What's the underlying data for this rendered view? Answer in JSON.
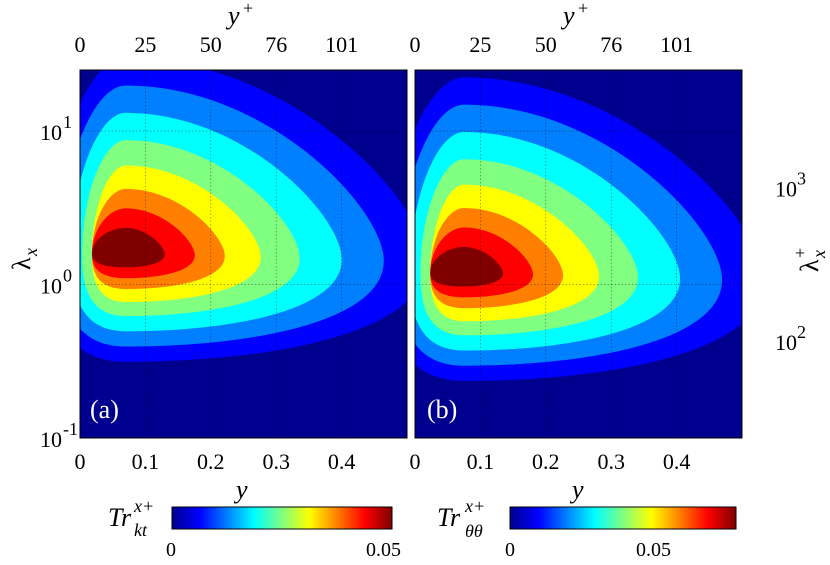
{
  "chart_data": [
    {
      "type": "heatmap",
      "panel_label": "(a)",
      "xlabel": "y",
      "top_xlabel": "y",
      "top_xlabel_sup": "+",
      "ylabel": "λ",
      "ylabel_sub": "x",
      "xlim": [
        0,
        0.5
      ],
      "ylim": [
        0.1,
        25
      ],
      "yscale": "log",
      "x_ticks": [
        "0",
        "0.1",
        "0.2",
        "0.3",
        "0.4"
      ],
      "x_tick_values": [
        0,
        0.1,
        0.2,
        0.3,
        0.4
      ],
      "top_x_ticks": [
        "0",
        "25",
        "50",
        "76",
        "101"
      ],
      "y_ticks": [
        {
          "base": "10",
          "exp": "-1",
          "value": 0.1
        },
        {
          "base": "10",
          "exp": "0",
          "value": 1
        },
        {
          "base": "10",
          "exp": "1",
          "value": 10
        }
      ],
      "grid": true,
      "peak": {
        "x": 0.07,
        "lambda_x": 1.6,
        "value": 0.05
      },
      "colorbar": {
        "label": "Tr",
        "label_sup": "x+",
        "label_sub": "kt",
        "min": 0,
        "max": 0.05,
        "ticks": [
          "0",
          "0.05"
        ],
        "tick_values": [
          0,
          0.05
        ]
      }
    },
    {
      "type": "heatmap",
      "panel_label": "(b)",
      "xlabel": "y",
      "top_xlabel": "y",
      "top_xlabel_sup": "+",
      "ylabel": "λ",
      "ylabel_sub": "x",
      "right_ylabel": "λ",
      "right_ylabel_sub": "x",
      "right_ylabel_sup": "+",
      "xlim": [
        0,
        0.5
      ],
      "ylim": [
        0.1,
        25
      ],
      "yscale": "log",
      "x_ticks": [
        "0",
        "0.1",
        "0.2",
        "0.3",
        "0.4"
      ],
      "x_tick_values": [
        0,
        0.1,
        0.2,
        0.3,
        0.4
      ],
      "top_x_ticks": [
        "0",
        "25",
        "50",
        "76",
        "101"
      ],
      "right_y_ticks": [
        {
          "base": "10",
          "exp": "2",
          "value": 100
        },
        {
          "base": "10",
          "exp": "3",
          "value": 1000
        }
      ],
      "grid": true,
      "peak": {
        "x": 0.075,
        "lambda_x": 1.2,
        "value": 0.065
      },
      "colorbar": {
        "label": "Tr",
        "label_sup": "x+",
        "label_sub": "θθ",
        "min": 0,
        "max": 0.07,
        "ticks": [
          "0",
          "0.05"
        ],
        "tick_values": [
          0,
          0.05
        ]
      }
    }
  ],
  "colormap": [
    "#00008f",
    "#0000ff",
    "#0080ff",
    "#00ffff",
    "#80ff80",
    "#ffff00",
    "#ff8000",
    "#ff0000",
    "#800000"
  ]
}
